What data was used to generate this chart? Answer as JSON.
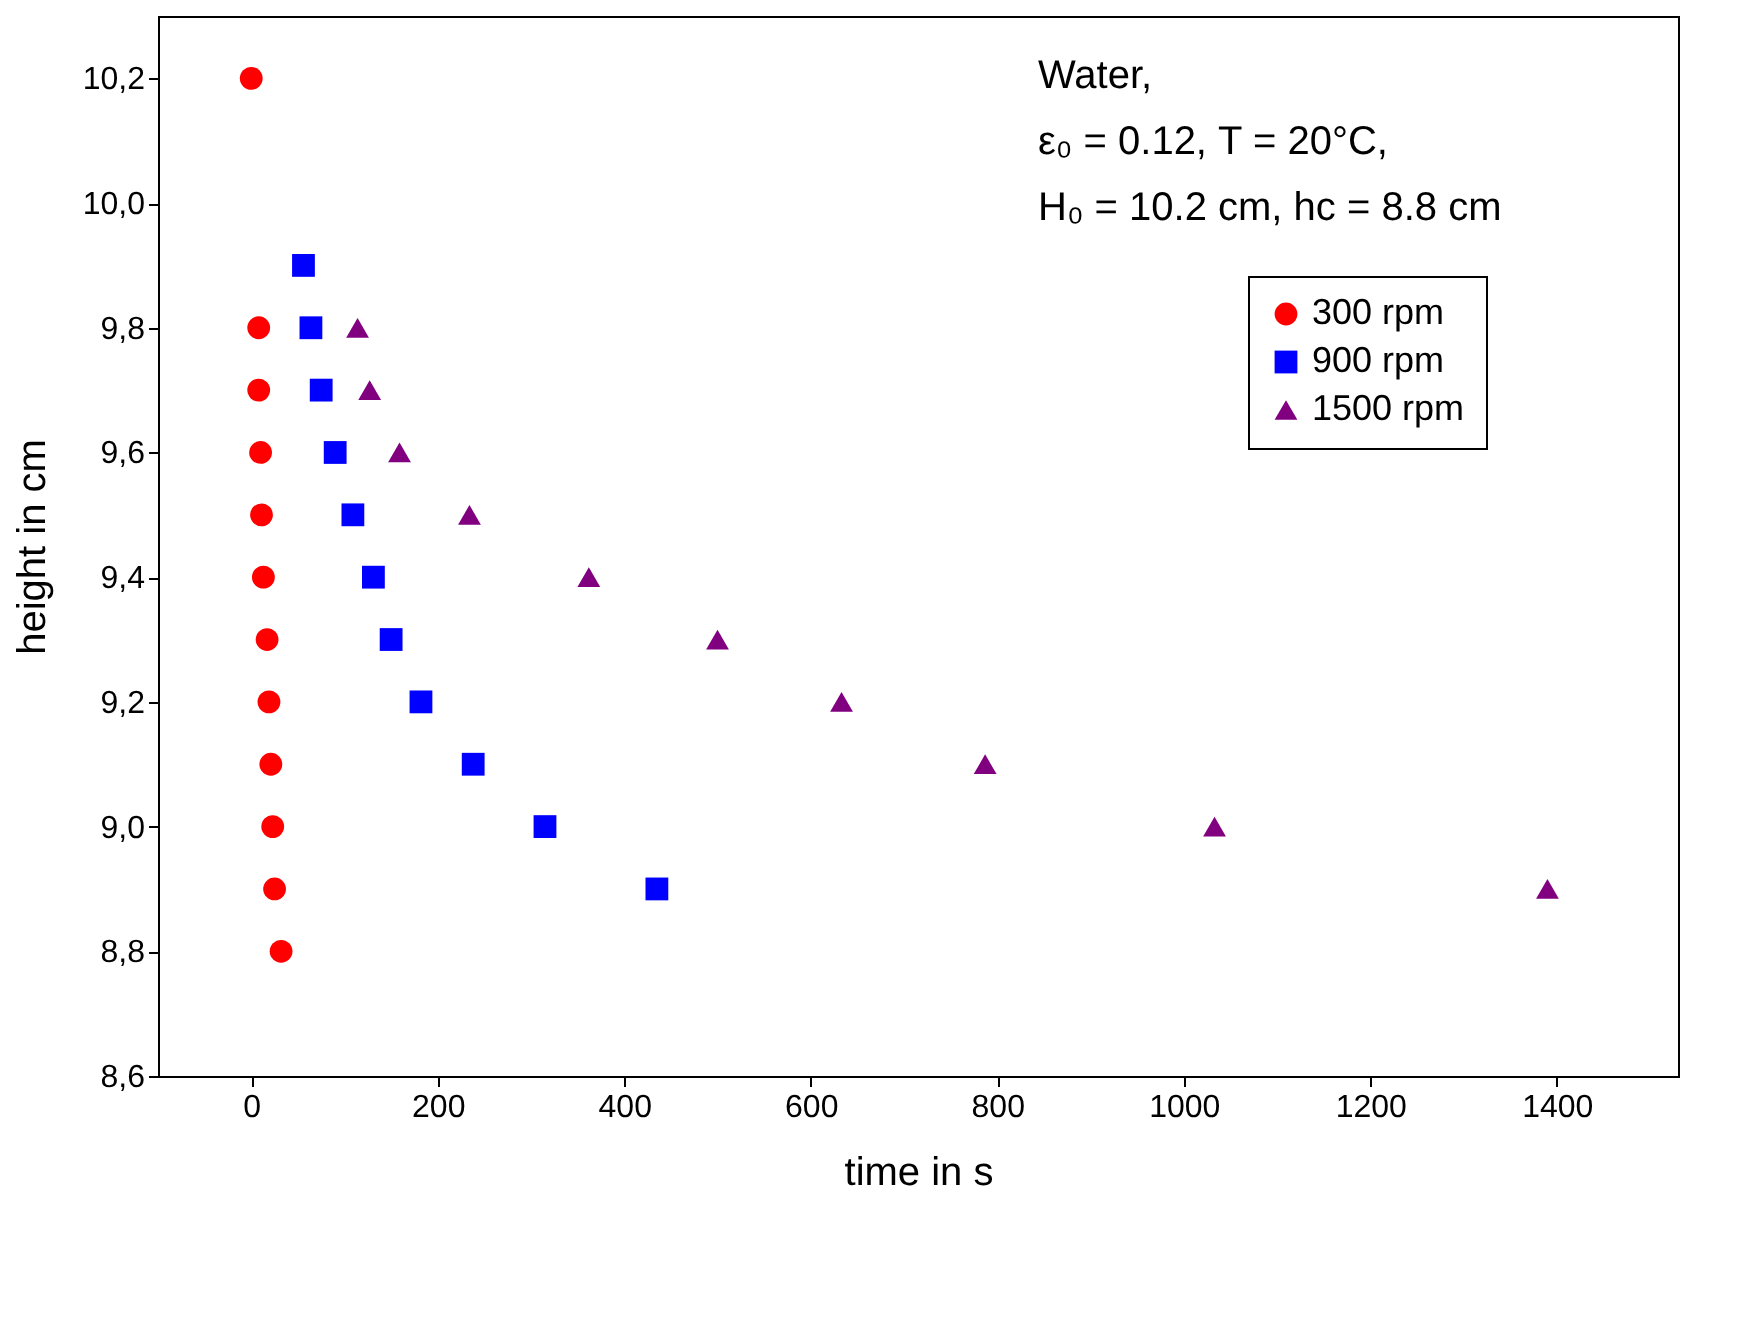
{
  "chart_data": {
    "type": "scatter",
    "xlabel": "time in s",
    "ylabel": "height in cm",
    "annotations": [
      "Water,",
      "ε₀ = 0.12, T = 20°C,",
      "H₀ = 10.2 cm, hc = 8.8 cm"
    ],
    "series": [
      {
        "name": "300 rpm",
        "color": "#ff0000",
        "marker": "circle",
        "x": [
          0,
          8,
          8,
          10,
          11,
          13,
          17,
          19,
          21,
          23,
          25,
          32
        ],
        "values": [
          10.2,
          9.8,
          9.7,
          9.6,
          9.5,
          9.4,
          9.3,
          9.2,
          9.1,
          9.0,
          8.9,
          8.8
        ]
      },
      {
        "name": "900 rpm",
        "color": "#0000ff",
        "marker": "square",
        "x": [
          56,
          64,
          75,
          90,
          109,
          131,
          150,
          182,
          238,
          315,
          435
        ],
        "values": [
          9.9,
          9.8,
          9.7,
          9.6,
          9.5,
          9.4,
          9.3,
          9.2,
          9.1,
          9.0,
          8.9
        ]
      },
      {
        "name": "1500 rpm",
        "color": "#800080",
        "marker": "triangle",
        "x": [
          114,
          127,
          159,
          234,
          362,
          500,
          633,
          787,
          1033,
          1390
        ],
        "values": [
          9.8,
          9.7,
          9.6,
          9.5,
          9.4,
          9.3,
          9.2,
          9.1,
          9.0,
          8.9
        ]
      }
    ],
    "xlim": [
      -100,
      1530
    ],
    "xticks": [
      0,
      200,
      400,
      600,
      800,
      1000,
      1200,
      1400
    ],
    "ylim": [
      8.6,
      10.3
    ],
    "yticks": [
      {
        "value": 8.6,
        "label": "8,6"
      },
      {
        "value": 8.8,
        "label": "8,8"
      },
      {
        "value": 9.0,
        "label": "9,0"
      },
      {
        "value": 9.2,
        "label": "9,2"
      },
      {
        "value": 9.4,
        "label": "9,4"
      },
      {
        "value": 9.6,
        "label": "9,6"
      },
      {
        "value": 9.8,
        "label": "9,8"
      },
      {
        "value": 10.0,
        "label": "10,0"
      },
      {
        "value": 10.2,
        "label": "10,2"
      }
    ],
    "grid": false,
    "legend": "top right"
  }
}
